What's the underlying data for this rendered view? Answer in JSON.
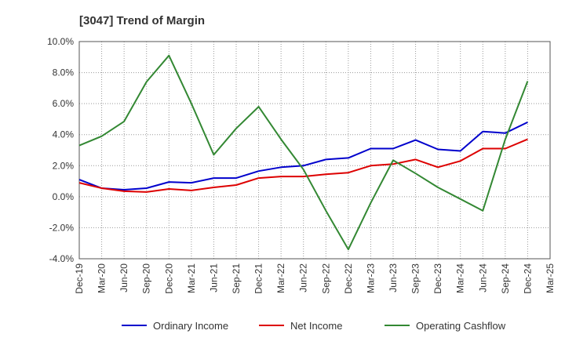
{
  "chart_data": {
    "type": "line",
    "title": "[3047]  Trend of Margin",
    "xlabel": "",
    "ylabel": "",
    "categories": [
      "Dec-19",
      "Mar-20",
      "Jun-20",
      "Sep-20",
      "Dec-20",
      "Mar-21",
      "Jun-21",
      "Sep-21",
      "Dec-21",
      "Mar-22",
      "Jun-22",
      "Sep-22",
      "Dec-22",
      "Mar-23",
      "Jun-23",
      "Sep-23",
      "Dec-23",
      "Mar-24",
      "Jun-24",
      "Sep-24",
      "Dec-24",
      "Mar-25"
    ],
    "ylim": [
      -4.0,
      10.0
    ],
    "yticks": [
      "-4.0%",
      "-2.0%",
      "0.0%",
      "2.0%",
      "4.0%",
      "6.0%",
      "8.0%",
      "10.0%"
    ],
    "grid": true,
    "legend_position": "bottom",
    "series": [
      {
        "name": "Ordinary Income",
        "color": "#0000cc",
        "values": [
          1.1,
          0.55,
          0.45,
          0.55,
          0.95,
          0.9,
          1.2,
          1.2,
          1.65,
          1.9,
          2.0,
          2.4,
          2.5,
          3.1,
          3.1,
          3.65,
          3.05,
          2.95,
          4.2,
          4.1,
          4.8,
          null
        ]
      },
      {
        "name": "Net Income",
        "color": "#dd0000",
        "values": [
          0.9,
          0.55,
          0.35,
          0.3,
          0.5,
          0.4,
          0.6,
          0.75,
          1.2,
          1.3,
          1.3,
          1.45,
          1.55,
          2.0,
          2.1,
          2.4,
          1.9,
          2.3,
          3.1,
          3.1,
          3.7,
          null
        ]
      },
      {
        "name": "Operating Cashflow",
        "color": "#338833",
        "values": [
          3.3,
          3.9,
          4.85,
          7.4,
          9.1,
          6.0,
          2.7,
          4.4,
          5.8,
          3.7,
          1.75,
          -0.9,
          -3.4,
          -0.4,
          2.35,
          1.5,
          0.6,
          -0.15,
          -0.9,
          3.7,
          7.45,
          null
        ]
      }
    ]
  }
}
